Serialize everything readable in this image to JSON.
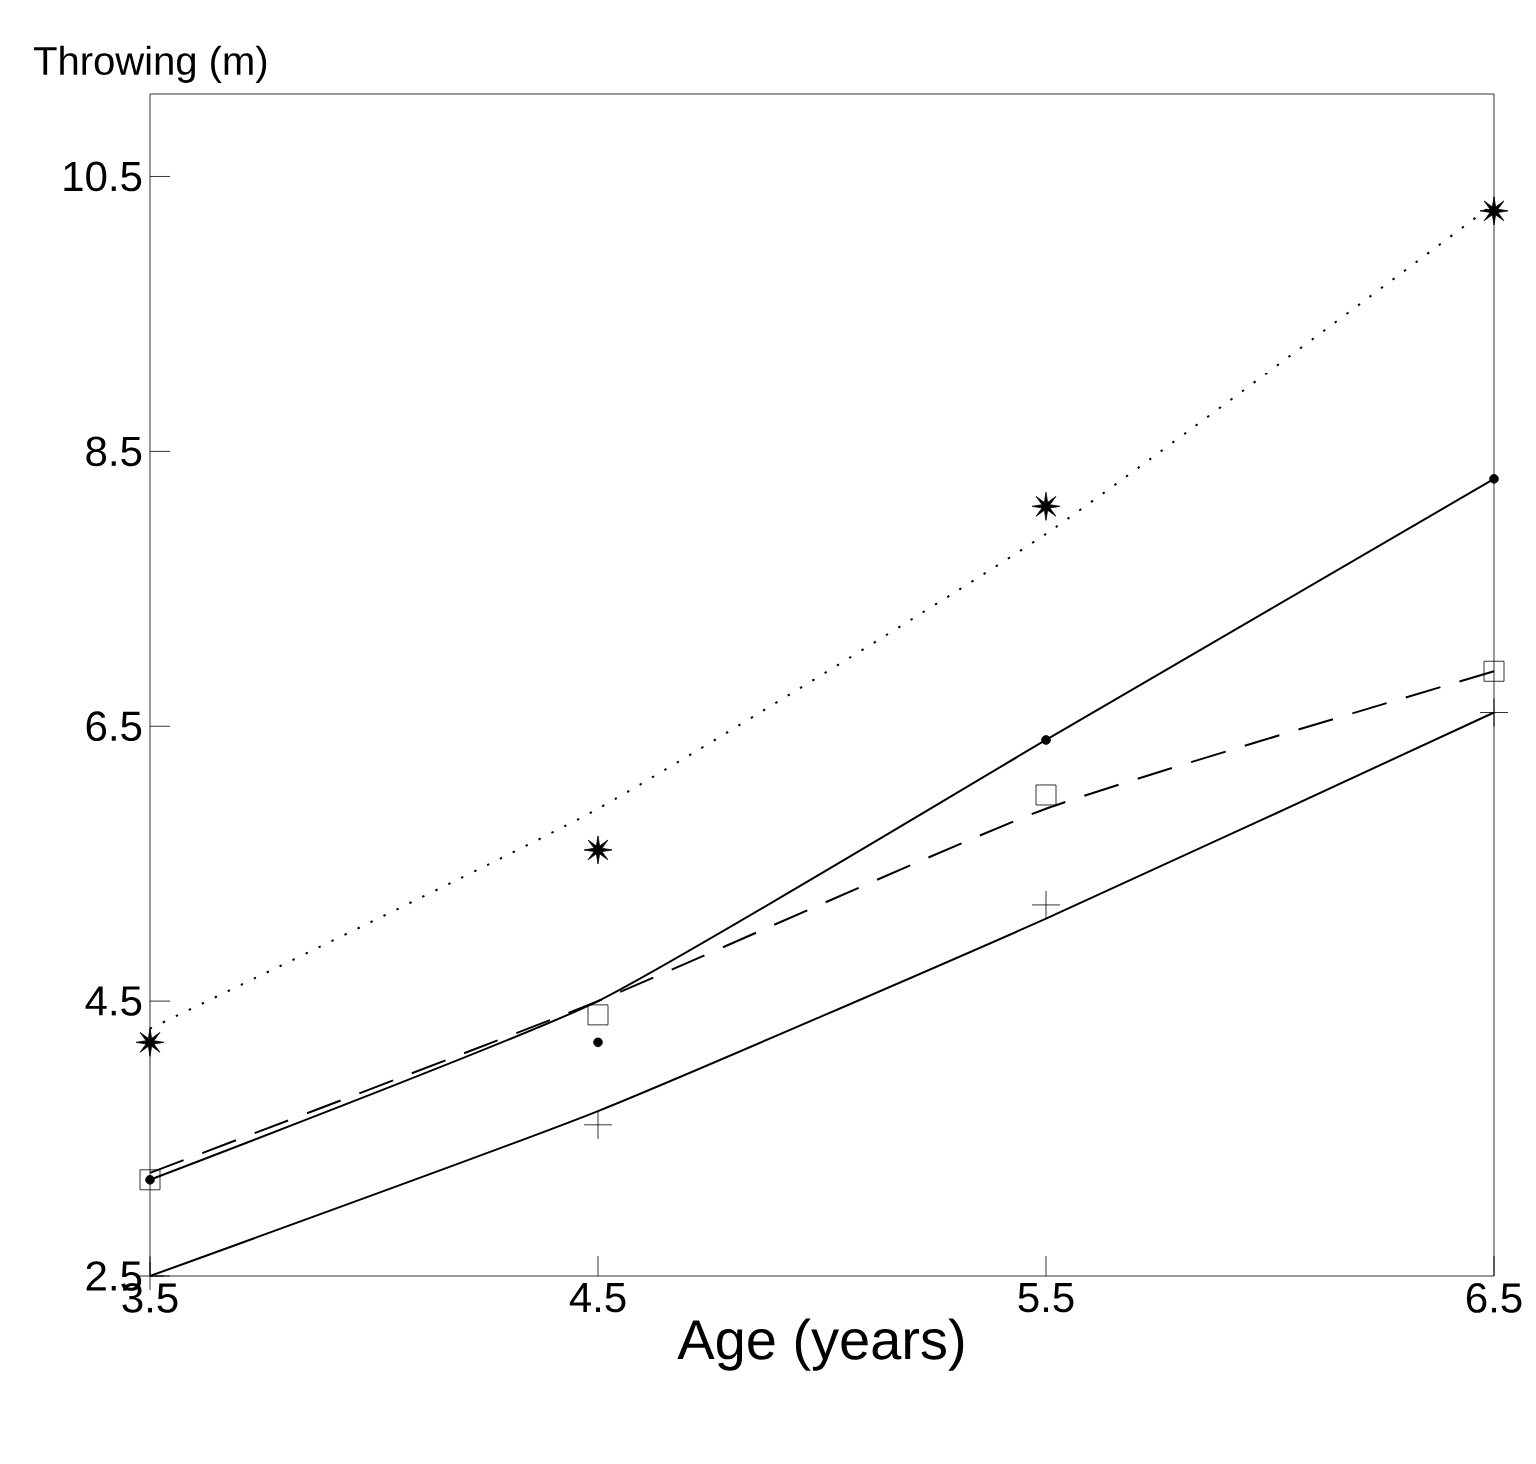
{
  "chart_data": {
    "type": "line",
    "xlabel": "Age (years)",
    "ylabel": "Throwing (m)",
    "x": [
      3.5,
      4.5,
      5.5,
      6.5
    ],
    "xlim": [
      3.5,
      6.5
    ],
    "xticks": [
      3.5,
      4.5,
      5.5,
      6.5
    ],
    "ylim": [
      2.5,
      11.1
    ],
    "yticks": [
      2.5,
      4.5,
      6.5,
      8.5,
      10.5
    ],
    "grid": false,
    "series": [
      {
        "type": "scatter",
        "marker": "star",
        "color": "#000000",
        "values": [
          4.2,
          5.6,
          8.1,
          10.25
        ]
      },
      {
        "line_style": "dotted",
        "color": "#000000",
        "values": [
          4.3,
          5.9,
          7.9,
          10.3
        ]
      },
      {
        "type": "scatter",
        "marker": "circle",
        "color": "#000000",
        "values": [
          3.2,
          4.2,
          6.4,
          8.3
        ]
      },
      {
        "line_style": "solid",
        "color": "#000000",
        "values": [
          3.2,
          4.5,
          6.4,
          8.3
        ]
      },
      {
        "type": "scatter",
        "marker": "square",
        "color": "#000000",
        "values": [
          3.2,
          4.4,
          6.0,
          6.9
        ]
      },
      {
        "line_style": "dashed",
        "color": "#000000",
        "values": [
          3.25,
          4.5,
          5.9,
          6.9
        ]
      },
      {
        "type": "scatter",
        "marker": "cross",
        "color": "#000000",
        "values": [
          2.5,
          3.6,
          5.2,
          6.6
        ]
      },
      {
        "line_style": "solid",
        "color": "#000000",
        "values": [
          2.5,
          3.7,
          5.1,
          6.6
        ]
      }
    ]
  }
}
